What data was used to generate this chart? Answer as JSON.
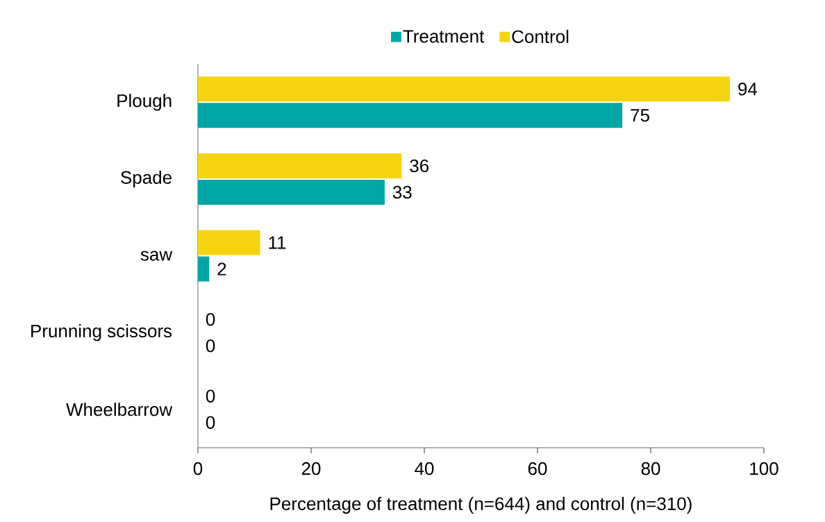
{
  "chart_data": {
    "type": "bar",
    "orientation": "horizontal",
    "xlabel": "Percentage of treatment (n=644) and control (n=310)",
    "categories": [
      "Plough",
      "Spade",
      "saw",
      "Prunning scissors",
      "Wheelbarrow"
    ],
    "series": [
      {
        "name": "Treatment",
        "color": "#00a6a6",
        "values": [
          75,
          33,
          2,
          0,
          0
        ]
      },
      {
        "name": "Control",
        "color": "#f5d40f",
        "values": [
          94,
          36,
          11,
          0,
          0
        ]
      }
    ],
    "xlim": [
      0,
      100
    ],
    "xticks": [
      0,
      20,
      40,
      60,
      80,
      100
    ],
    "data_labels": true,
    "grid": false,
    "legend": "top"
  }
}
